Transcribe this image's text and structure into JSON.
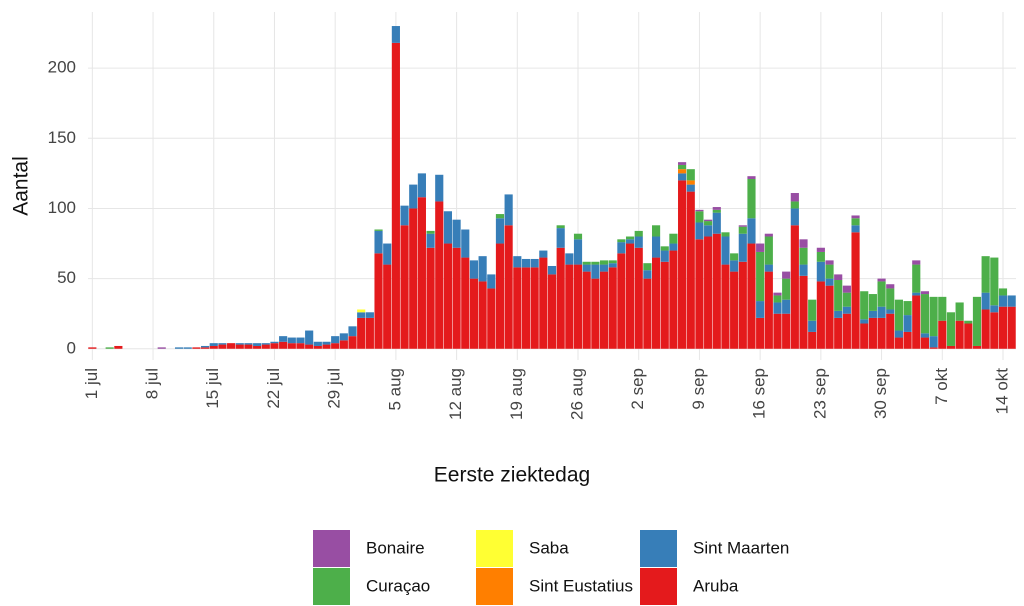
{
  "chart_data": {
    "type": "stacked_bar",
    "x_label": "Eerste ziektedag",
    "y_label": "Aantal",
    "categories": [
      "1 jul",
      null,
      null,
      null,
      null,
      null,
      null,
      "8 jul",
      null,
      null,
      null,
      null,
      null,
      null,
      "15 jul",
      null,
      null,
      null,
      null,
      null,
      null,
      "22 jul",
      null,
      null,
      null,
      null,
      null,
      null,
      "29 jul",
      null,
      null,
      null,
      null,
      null,
      null,
      "5 aug",
      null,
      null,
      null,
      null,
      null,
      null,
      "12 aug",
      null,
      null,
      null,
      null,
      null,
      null,
      "19 aug",
      null,
      null,
      null,
      null,
      null,
      null,
      "26 aug",
      null,
      null,
      null,
      null,
      null,
      null,
      "2 sep",
      null,
      null,
      null,
      null,
      null,
      null,
      "9 sep",
      null,
      null,
      null,
      null,
      null,
      null,
      "16 sep",
      null,
      null,
      null,
      null,
      null,
      null,
      "23 sep",
      null,
      null,
      null,
      null,
      null,
      null,
      "30 sep",
      null,
      null,
      null,
      null,
      null,
      null,
      "7 okt",
      null,
      null,
      null,
      null,
      null,
      null,
      "14 okt",
      null
    ],
    "series": [
      {
        "name": "Bonaire",
        "color": "#984ea3",
        "values": [
          0,
          0,
          0,
          0,
          0,
          0,
          0,
          0,
          1,
          0,
          0,
          0,
          0,
          0,
          0,
          0,
          0,
          0,
          0,
          0,
          0,
          0,
          0,
          0,
          0,
          0,
          0,
          0,
          0,
          0,
          0,
          0,
          0,
          0,
          0,
          0,
          0,
          0,
          0,
          0,
          0,
          0,
          0,
          0,
          0,
          0,
          0,
          0,
          0,
          0,
          0,
          0,
          0,
          0,
          0,
          0,
          0,
          0,
          0,
          0,
          0,
          0,
          0,
          0,
          0,
          0,
          0,
          0,
          2,
          0,
          1,
          1,
          2,
          0,
          0,
          1,
          2,
          6,
          2,
          2,
          5,
          6,
          6,
          0,
          3,
          3,
          4,
          5,
          2,
          0,
          0,
          2,
          3,
          0,
          0,
          3,
          2,
          0,
          0,
          0,
          0,
          0,
          0,
          0,
          0,
          0,
          0
        ]
      },
      {
        "name": "Curaçao",
        "color": "#4daf4a",
        "values": [
          0,
          0,
          1,
          0,
          0,
          0,
          0,
          0,
          0,
          0,
          0,
          0,
          0,
          0,
          0,
          0,
          0,
          0,
          0,
          0,
          0,
          0,
          0,
          0,
          0,
          0,
          0,
          0,
          0,
          0,
          0,
          0,
          0,
          1,
          0,
          0,
          0,
          0,
          0,
          2,
          0,
          0,
          0,
          0,
          0,
          0,
          0,
          3,
          0,
          0,
          0,
          0,
          0,
          0,
          2,
          0,
          4,
          2,
          2,
          3,
          2,
          2,
          2,
          4,
          5,
          8,
          3,
          7,
          3,
          8,
          8,
          3,
          2,
          3,
          5,
          5,
          28,
          35,
          20,
          5,
          15,
          5,
          12,
          15,
          7,
          10,
          22,
          10,
          5,
          20,
          12,
          18,
          15,
          22,
          10,
          20,
          28,
          28,
          17,
          24,
          13,
          2,
          35,
          26,
          34,
          5,
          0
        ]
      },
      {
        "name": "Saba",
        "color": "#ffff33",
        "values": [
          0,
          0,
          0,
          0,
          0,
          0,
          0,
          0,
          0,
          0,
          0,
          0,
          0,
          0,
          0,
          0,
          0,
          0,
          0,
          0,
          0,
          0,
          0,
          0,
          0,
          0,
          0,
          0,
          0,
          0,
          0,
          2,
          0,
          0,
          0,
          0,
          0,
          0,
          0,
          0,
          0,
          0,
          0,
          0,
          0,
          0,
          0,
          0,
          0,
          0,
          0,
          0,
          0,
          0,
          0,
          0,
          0,
          0,
          0,
          0,
          0,
          0,
          0,
          0,
          0,
          0,
          0,
          0,
          0,
          0,
          0,
          0,
          0,
          0,
          0,
          0,
          0,
          0,
          0,
          0,
          0,
          0,
          0,
          0,
          0,
          0,
          0,
          0,
          0,
          0,
          0,
          0,
          0,
          0,
          0,
          0,
          0,
          0,
          0,
          0,
          0,
          0,
          0,
          0,
          0,
          0,
          0
        ]
      },
      {
        "name": "Sint Eustatius",
        "color": "#ff7f00",
        "values": [
          0,
          0,
          0,
          0,
          0,
          0,
          0,
          0,
          0,
          0,
          0,
          0,
          0,
          0,
          0,
          0,
          0,
          0,
          0,
          0,
          0,
          0,
          0,
          0,
          0,
          0,
          0,
          0,
          0,
          0,
          0,
          0,
          0,
          0,
          0,
          0,
          0,
          0,
          0,
          0,
          0,
          0,
          0,
          0,
          0,
          0,
          0,
          0,
          0,
          0,
          0,
          0,
          0,
          0,
          0,
          0,
          0,
          0,
          0,
          0,
          0,
          0,
          0,
          0,
          0,
          0,
          0,
          0,
          3,
          3,
          0,
          0,
          0,
          0,
          0,
          0,
          0,
          0,
          0,
          0,
          0,
          0,
          0,
          0,
          0,
          0,
          0,
          0,
          0,
          0,
          0,
          0,
          0,
          0,
          0,
          0,
          0,
          0,
          0,
          0,
          0,
          0,
          0,
          0,
          0,
          0,
          0
        ]
      },
      {
        "name": "Sint Maarten",
        "color": "#377eb8",
        "values": [
          0,
          0,
          0,
          0,
          0,
          0,
          0,
          0,
          0,
          0,
          1,
          1,
          0,
          1,
          2,
          1,
          0,
          1,
          1,
          2,
          1,
          1,
          4,
          4,
          4,
          10,
          3,
          2,
          5,
          5,
          7,
          4,
          4,
          16,
          15,
          12,
          14,
          17,
          17,
          10,
          19,
          23,
          20,
          20,
          13,
          18,
          10,
          18,
          22,
          8,
          6,
          6,
          5,
          6,
          14,
          8,
          18,
          5,
          10,
          5,
          3,
          8,
          3,
          8,
          6,
          15,
          8,
          5,
          5,
          5,
          12,
          8,
          15,
          20,
          8,
          20,
          18,
          12,
          5,
          8,
          10,
          12,
          8,
          8,
          14,
          5,
          5,
          5,
          5,
          3,
          5,
          8,
          3,
          5,
          12,
          2,
          3,
          8,
          0,
          0,
          0,
          0,
          0,
          12,
          5,
          8,
          8
        ]
      },
      {
        "name": "Aruba",
        "color": "#e41a1c",
        "values": [
          1,
          0,
          0,
          2,
          0,
          0,
          0,
          0,
          0,
          0,
          0,
          0,
          1,
          1,
          2,
          3,
          4,
          3,
          3,
          2,
          3,
          4,
          5,
          4,
          4,
          3,
          2,
          3,
          4,
          6,
          9,
          22,
          22,
          68,
          60,
          218,
          88,
          100,
          108,
          72,
          105,
          75,
          72,
          65,
          50,
          48,
          43,
          75,
          88,
          58,
          58,
          58,
          65,
          53,
          72,
          60,
          60,
          55,
          50,
          55,
          58,
          68,
          75,
          72,
          50,
          65,
          62,
          70,
          120,
          112,
          78,
          80,
          82,
          60,
          55,
          62,
          75,
          22,
          55,
          25,
          25,
          88,
          52,
          12,
          48,
          45,
          22,
          25,
          83,
          18,
          22,
          22,
          25,
          8,
          12,
          38,
          8,
          1,
          20,
          2,
          20,
          18,
          2,
          28,
          26,
          30,
          30
        ]
      }
    ],
    "ylim": [
      -8,
      240
    ],
    "yticks": [
      0,
      50,
      100,
      150,
      200
    ],
    "grid": true,
    "legend": "bottom"
  }
}
